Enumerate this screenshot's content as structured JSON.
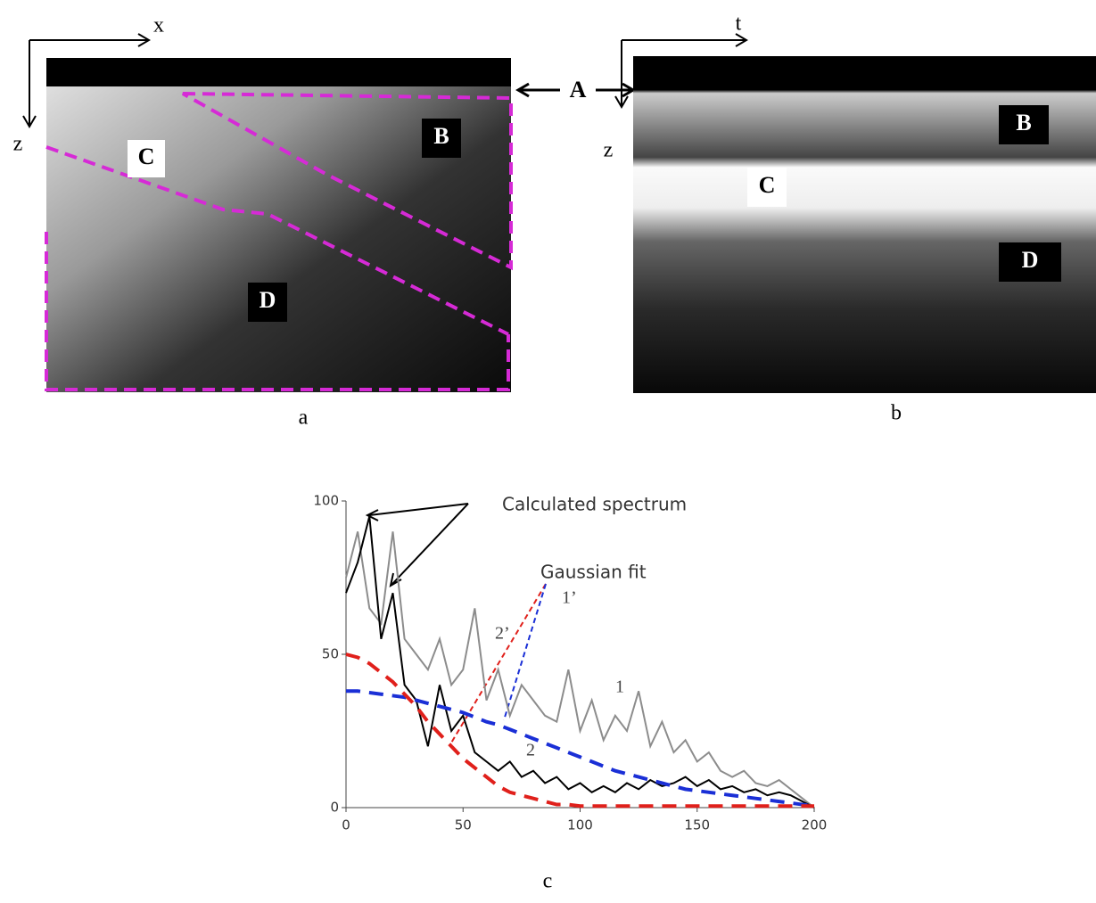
{
  "panels": [
    {
      "label": "a",
      "x_axis": "x",
      "z_axis": "z",
      "regions": [
        "B",
        "C",
        "D"
      ]
    },
    {
      "label": "b",
      "x_axis": "t",
      "z_axis": "z",
      "regions": [
        "B",
        "C",
        "D"
      ]
    }
  ],
  "surface_label": "A",
  "chart_label": "c",
  "chart_data": {
    "type": "line",
    "x": [
      0,
      5,
      10,
      15,
      20,
      25,
      30,
      35,
      40,
      45,
      50,
      55,
      60,
      65,
      70,
      75,
      80,
      85,
      90,
      95,
      100,
      105,
      110,
      115,
      120,
      125,
      130,
      135,
      140,
      145,
      150,
      155,
      160,
      165,
      170,
      175,
      180,
      185,
      190,
      195,
      200
    ],
    "series": [
      {
        "name": "1",
        "color": "#8c8c8c",
        "dash": false,
        "values": [
          75,
          90,
          65,
          60,
          90,
          55,
          50,
          45,
          55,
          40,
          45,
          65,
          35,
          45,
          30,
          40,
          35,
          30,
          28,
          45,
          25,
          35,
          22,
          30,
          25,
          38,
          20,
          28,
          18,
          22,
          15,
          18,
          12,
          10,
          12,
          8,
          7,
          9,
          6,
          3,
          0
        ]
      },
      {
        "name": "2",
        "color": "#000000",
        "dash": false,
        "values": [
          70,
          80,
          95,
          55,
          70,
          40,
          35,
          20,
          40,
          25,
          30,
          18,
          15,
          12,
          15,
          10,
          12,
          8,
          10,
          6,
          8,
          5,
          7,
          5,
          8,
          6,
          9,
          7,
          8,
          10,
          7,
          9,
          6,
          7,
          5,
          6,
          4,
          5,
          4,
          2,
          0
        ]
      },
      {
        "name": "1’",
        "color": "#1a2fd6",
        "dash": true,
        "values": [
          38,
          38,
          37.5,
          37,
          36.5,
          36,
          35,
          34,
          33,
          32,
          31,
          29.5,
          28,
          27,
          25.5,
          24,
          22.5,
          21,
          19.5,
          18,
          16.5,
          15,
          13.5,
          12,
          11,
          10,
          9,
          8,
          7,
          6,
          5.5,
          5,
          4.5,
          4,
          3.5,
          3,
          2.5,
          2,
          1.5,
          1,
          0.5
        ]
      },
      {
        "name": "2’",
        "color": "#e0201b",
        "dash": true,
        "values": [
          50,
          49,
          47,
          44,
          41,
          37,
          33,
          28,
          24,
          20,
          16,
          13,
          10,
          7,
          5,
          4,
          3,
          2,
          1,
          1,
          0.5,
          0.5,
          0.5,
          0.5,
          0.5,
          0.5,
          0.5,
          0.5,
          0.5,
          0.5,
          0.5,
          0.5,
          0.5,
          0.5,
          0.5,
          0.5,
          0.5,
          0.5,
          0.5,
          0.5,
          0.5
        ]
      }
    ],
    "annotations": [
      "Calculated spectrum",
      "Gaussian fit"
    ],
    "xlim": [
      0,
      200
    ],
    "xticks": [
      0,
      50,
      100,
      150,
      200
    ],
    "ylim": [
      0,
      100
    ],
    "yticks": [
      0,
      50,
      100
    ]
  }
}
